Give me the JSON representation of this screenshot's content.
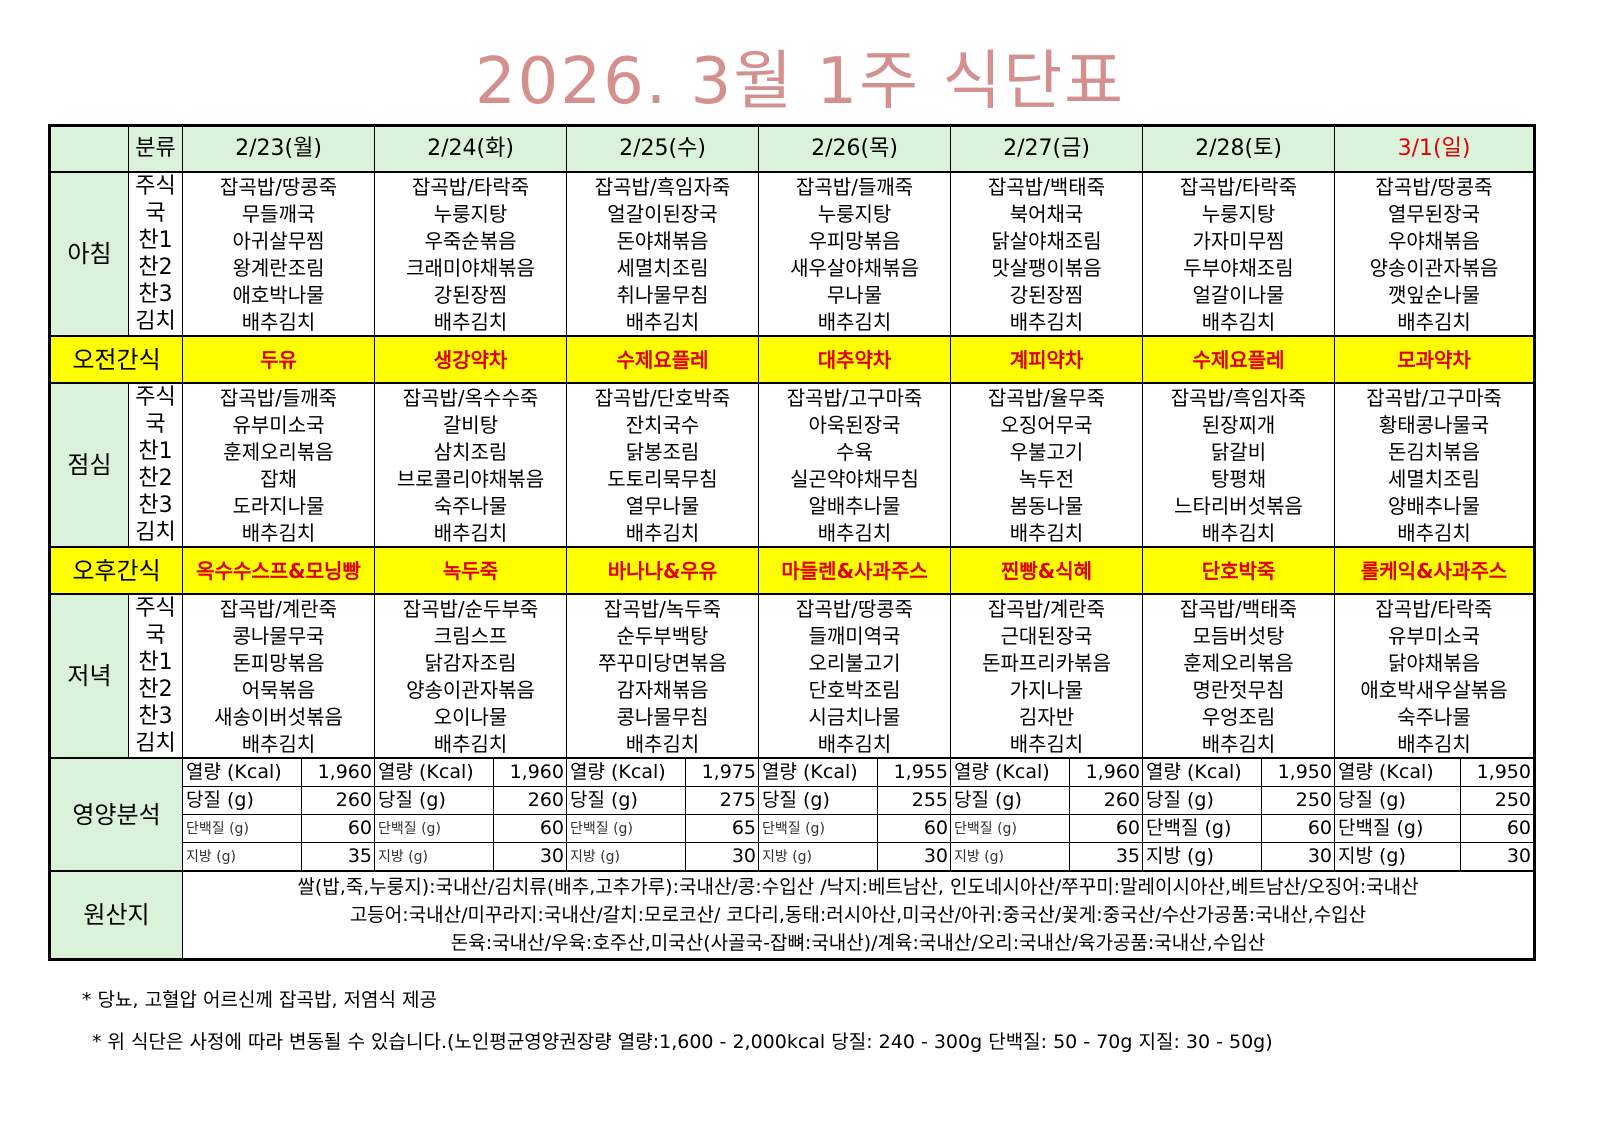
{
  "title": "2026. 3월 1주 식단표",
  "header": {
    "label": "분류",
    "days": [
      "2/23(월)",
      "2/24(화)",
      "2/25(수)",
      "2/26(목)",
      "2/27(금)",
      "2/28(토)",
      "3/1(일)"
    ]
  },
  "sections": [
    {
      "kind": "meal",
      "name": "아침",
      "rows": [
        {
          "label": "주식",
          "items": [
            "잡곡밥/땅콩죽",
            "잡곡밥/타락죽",
            "잡곡밥/흑임자죽",
            "잡곡밥/들깨죽",
            "잡곡밥/백태죽",
            "잡곡밥/타락죽",
            "잡곡밥/땅콩죽"
          ]
        },
        {
          "label": "국",
          "items": [
            "무들깨국",
            "누룽지탕",
            "얼갈이된장국",
            "누룽지탕",
            "북어채국",
            "누룽지탕",
            "열무된장국"
          ]
        },
        {
          "label": "찬1",
          "items": [
            "아귀살무찜",
            "우죽순볶음",
            "돈야채볶음",
            "우피망볶음",
            "닭살야채조림",
            "가자미무찜",
            "우야채볶음"
          ]
        },
        {
          "label": "찬2",
          "items": [
            "왕계란조림",
            "크래미야채볶음",
            "세멸치조림",
            "새우살야채볶음",
            "맛살팽이볶음",
            "두부야채조림",
            "양송이관자볶음"
          ]
        },
        {
          "label": "찬3",
          "items": [
            "애호박나물",
            "강된장찜",
            "취나물무침",
            "무나물",
            "강된장찜",
            "얼갈이나물",
            "깻잎순나물"
          ]
        },
        {
          "label": "김치",
          "items": [
            "배추김치",
            "배추김치",
            "배추김치",
            "배추김치",
            "배추김치",
            "배추김치",
            "배추김치"
          ]
        }
      ]
    },
    {
      "kind": "snack",
      "name": "오전간식",
      "items": [
        "두유",
        "생강약차",
        "수제요플레",
        "대추약차",
        "계피약차",
        "수제요플레",
        "모과약차"
      ]
    },
    {
      "kind": "meal",
      "name": "점심",
      "rows": [
        {
          "label": "주식",
          "items": [
            "잡곡밥/들깨죽",
            "잡곡밥/옥수수죽",
            "잡곡밥/단호박죽",
            "잡곡밥/고구마죽",
            "잡곡밥/율무죽",
            "잡곡밥/흑임자죽",
            "잡곡밥/고구마죽"
          ]
        },
        {
          "label": "국",
          "items": [
            "유부미소국",
            "갈비탕",
            "잔치국수",
            "아욱된장국",
            "오징어무국",
            "된장찌개",
            "황태콩나물국"
          ]
        },
        {
          "label": "찬1",
          "items": [
            "훈제오리볶음",
            "삼치조림",
            "닭봉조림",
            "수육",
            "우불고기",
            "닭갈비",
            "돈김치볶음"
          ]
        },
        {
          "label": "찬2",
          "items": [
            "잡채",
            "브로콜리야채볶음",
            "도토리묵무침",
            "실곤약야채무침",
            "녹두전",
            "탕평채",
            "세멸치조림"
          ]
        },
        {
          "label": "찬3",
          "items": [
            "도라지나물",
            "숙주나물",
            "열무나물",
            "알배추나물",
            "봄동나물",
            "느타리버섯볶음",
            "양배추나물"
          ]
        },
        {
          "label": "김치",
          "items": [
            "배추김치",
            "배추김치",
            "배추김치",
            "배추김치",
            "배추김치",
            "배추김치",
            "배추김치"
          ]
        }
      ]
    },
    {
      "kind": "snack",
      "name": "오후간식",
      "items": [
        "옥수수스프&모닝빵",
        "녹두죽",
        "바나나&우유",
        "마들렌&사과주스",
        "찐빵&식혜",
        "단호박죽",
        "롤케익&사과주스"
      ]
    },
    {
      "kind": "meal",
      "name": "저녁",
      "rows": [
        {
          "label": "주식",
          "items": [
            "잡곡밥/계란죽",
            "잡곡밥/순두부죽",
            "잡곡밥/녹두죽",
            "잡곡밥/땅콩죽",
            "잡곡밥/계란죽",
            "잡곡밥/백태죽",
            "잡곡밥/타락죽"
          ]
        },
        {
          "label": "국",
          "items": [
            "콩나물무국",
            "크림스프",
            "순두부백탕",
            "들깨미역국",
            "근대된장국",
            "모듬버섯탕",
            "유부미소국"
          ]
        },
        {
          "label": "찬1",
          "items": [
            "돈피망볶음",
            "닭감자조림",
            "쭈꾸미당면볶음",
            "오리불고기",
            "돈파프리카볶음",
            "훈제오리볶음",
            "닭야채볶음"
          ]
        },
        {
          "label": "찬2",
          "items": [
            "어묵볶음",
            "양송이관자볶음",
            "감자채볶음",
            "단호박조림",
            "가지나물",
            "명란젓무침",
            "애호박새우살볶음"
          ]
        },
        {
          "label": "찬3",
          "items": [
            "새송이버섯볶음",
            "오이나물",
            "콩나물무침",
            "시금치나물",
            "김자반",
            "우엉조림",
            "숙주나물"
          ]
        },
        {
          "label": "김치",
          "items": [
            "배추김치",
            "배추김치",
            "배추김치",
            "배추김치",
            "배추김치",
            "배추김치",
            "배추김치"
          ]
        }
      ]
    }
  ],
  "nutrition": {
    "label": "영양분석",
    "days": [
      [
        [
          "열량 (Kcal)",
          "1,960"
        ],
        [
          "당질 (g)",
          "260"
        ],
        [
          "단백질 (g)",
          "60"
        ],
        [
          "지방 (g)",
          "35"
        ]
      ],
      [
        [
          "열량 (Kcal)",
          "1,960"
        ],
        [
          "당질 (g)",
          "260"
        ],
        [
          "단백질 (g)",
          "60"
        ],
        [
          "지방 (g)",
          "30"
        ]
      ],
      [
        [
          "열량 (Kcal)",
          "1,975"
        ],
        [
          "당질 (g)",
          "275"
        ],
        [
          "단백질 (g)",
          "65"
        ],
        [
          "지방 (g)",
          "30"
        ]
      ],
      [
        [
          "열량 (Kcal)",
          "1,955"
        ],
        [
          "당질 (g)",
          "255"
        ],
        [
          "단백질 (g)",
          "60"
        ],
        [
          "지방 (g)",
          "30"
        ]
      ],
      [
        [
          "열량 (Kcal)",
          "1,960"
        ],
        [
          "당질 (g)",
          "260"
        ],
        [
          "단백질 (g)",
          "60"
        ],
        [
          "지방 (g)",
          "35"
        ]
      ],
      [
        [
          "열량 (Kcal)",
          "1,950"
        ],
        [
          "당질 (g)",
          "250"
        ],
        [
          "단백질 (g)",
          "60"
        ],
        [
          "지방 (g)",
          "30"
        ]
      ],
      [
        [
          "열량 (Kcal)",
          "1,950"
        ],
        [
          "당질 (g)",
          "250"
        ],
        [
          "단백질 (g)",
          "60"
        ],
        [
          "지방 (g)",
          "30"
        ]
      ]
    ]
  },
  "origin": {
    "label": "원산지",
    "lines": [
      "쌀(밥,죽,누룽지):국내산/김치류(배추,고추가루):국내산/콩:수입산 /낙지:베트남산, 인도네시아산/쭈꾸미:말레이시아산,베트남산/오징어:국내산",
      "고등어:국내산/미꾸라지:국내산/갈치:모로코산/ 코다리,동태:러시아산,미국산/아귀:중국산/꽃게:중국산/수산가공품:국내산,수입산",
      "돈육:국내산/우육:호주산,미국산(사골국-잡뼈:국내산)/계육:국내산/오리:국내산/육가공품:국내산,수입산"
    ]
  },
  "notes": [
    "* 당뇨, 고혈압 어르신께 잡곡밥, 저염식 제공",
    "* 위 식단은 사정에 따라 변동될 수 있습니다.(노인평균영양권장량 열량:1,600 - 2,000kcal 당질: 240 - 300g 단백질: 50 - 70g 지질: 30 - 50g)"
  ]
}
